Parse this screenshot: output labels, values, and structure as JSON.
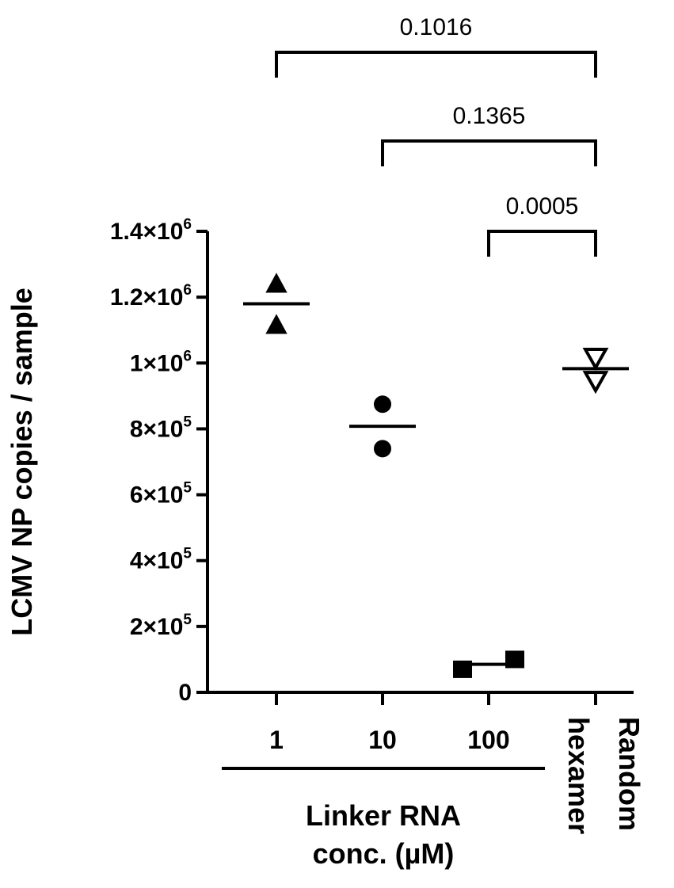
{
  "chart_data": {
    "type": "scatter",
    "title": "",
    "ylabel": "LCMV NP copies / sample",
    "xlabel": "",
    "ylim": [
      0,
      1400000
    ],
    "y_ticks": [
      {
        "value": 0,
        "mantissa": "0",
        "exponent": ""
      },
      {
        "value": 200000,
        "mantissa": "2×10",
        "exponent": "5"
      },
      {
        "value": 400000,
        "mantissa": "4×10",
        "exponent": "5"
      },
      {
        "value": 600000,
        "mantissa": "6×10",
        "exponent": "5"
      },
      {
        "value": 800000,
        "mantissa": "8×10",
        "exponent": "5"
      },
      {
        "value": 1000000,
        "mantissa": "1×10",
        "exponent": "6"
      },
      {
        "value": 1200000,
        "mantissa": "1.2×10",
        "exponent": "6"
      },
      {
        "value": 1400000,
        "mantissa": "1.4×10",
        "exponent": "6"
      }
    ],
    "categories": [
      "1",
      "10",
      "100",
      "Random hexamer"
    ],
    "category_label_lines": [
      [
        "1"
      ],
      [
        "10"
      ],
      [
        "100"
      ],
      [
        "Random",
        "hexamer"
      ]
    ],
    "series": [
      {
        "category": "1",
        "marker": "triangle-up",
        "fill": "#000000",
        "points": [
          1240000,
          1115000
        ],
        "mean": 1180000
      },
      {
        "category": "10",
        "marker": "circle",
        "fill": "#000000",
        "points": [
          875000,
          740000
        ],
        "mean": 808000
      },
      {
        "category": "100",
        "marker": "square",
        "fill": "#000000",
        "points": [
          70000,
          100000
        ],
        "mean": 85000
      },
      {
        "category": "Random hexamer",
        "marker": "triangle-down",
        "fill": "#ffffff",
        "points": [
          1015000,
          945000
        ],
        "mean": 983000
      }
    ],
    "comparisons": [
      {
        "from": "1",
        "to": "Random hexamer",
        "p": "0.1016"
      },
      {
        "from": "10",
        "to": "Random hexamer",
        "p": "0.1365"
      },
      {
        "from": "100",
        "to": "Random hexamer",
        "p": "0.0005"
      }
    ],
    "group_label": {
      "lines": [
        "Linker RNA",
        "conc. (µM)"
      ],
      "spans": [
        "1",
        "100"
      ]
    }
  }
}
